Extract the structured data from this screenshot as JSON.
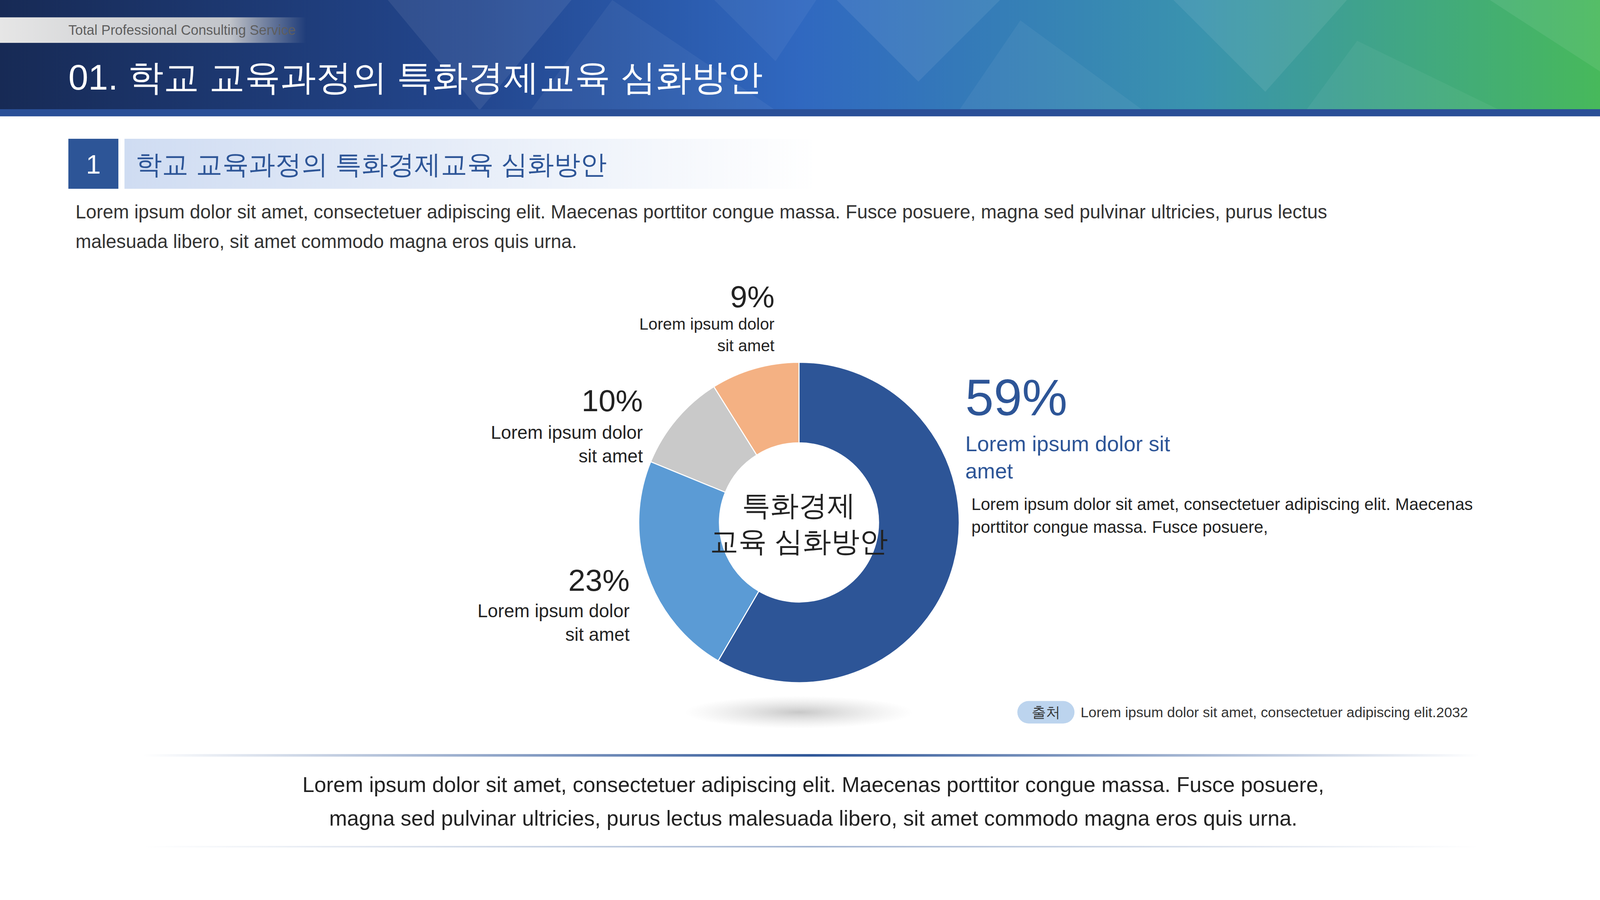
{
  "header": {
    "tagline": "Total Professional Consulting Service",
    "title": "01. 학교 교육과정의 특화경제교육 심화방안"
  },
  "section": {
    "number": "1",
    "title": "학교 교육과정의 특화경제교육 심화방안"
  },
  "intro": [
    "Lorem ipsum dolor sit amet, consectetuer adipiscing elit. Maecenas porttitor congue massa. Fusce posuere, magna sed pulvinar ultricies, purus lectus",
    "malesuada libero, sit amet commodo magna eros quis urna."
  ],
  "chart_data": {
    "type": "donut",
    "categories": [
      "Lorem ipsum dolor sit amet",
      "Lorem ipsum dolor sit amet",
      "Lorem ipsum dolor sit amet",
      "Lorem ipsum dolor sit amet"
    ],
    "values": [
      59,
      23,
      10,
      9
    ],
    "value_labels": [
      "59%",
      "23%",
      "10%",
      "9%"
    ],
    "colors": [
      "#2d5597",
      "#5b9bd5",
      "#c9c9c9",
      "#f4b183"
    ],
    "data_labels": true,
    "center_text": [
      "특화경제",
      "교육 심화방안"
    ],
    "annotation": "Lorem ipsum dolor sit amet, consectetuer adipiscing elit. Maecenas porttitor congue massa. Fusce posuere,"
  },
  "source": {
    "label": "출처",
    "text": "Lorem ipsum dolor sit amet, consectetuer adipiscing elit.2032"
  },
  "footer": [
    "Lorem ipsum dolor sit amet, consectetuer adipiscing elit. Maecenas porttitor congue massa. Fusce posuere,",
    "magna sed pulvinar ultricies, purus lectus malesuada libero, sit amet commodo magna eros quis urna."
  ]
}
